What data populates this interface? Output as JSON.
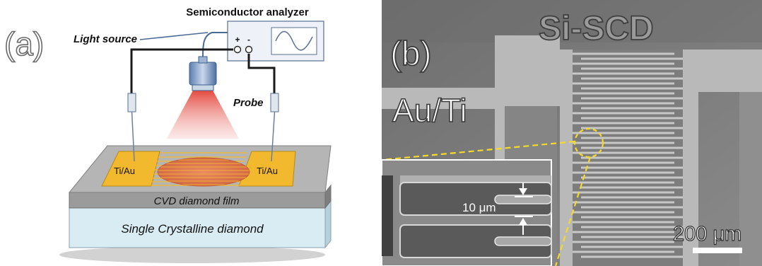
{
  "panel_a": {
    "panel_label": "(a)",
    "analyzer_label": "Semiconductor analyzer",
    "analyzer_terminals": {
      "plus": "+",
      "minus": "-"
    },
    "light_source_label": "Light source",
    "probe_label": "Probe",
    "electrode_left_label": "Ti/Au",
    "electrode_right_label": "Ti/Au",
    "film_label": "CVD diamond film",
    "substrate_label": "Single Crystalline diamond",
    "colors": {
      "electrode": "#F2B92E",
      "light_beam": "#E23A2E",
      "film": "#9B9B9B",
      "substrate": "#D9ECF4",
      "wire": "#1a1a1a"
    }
  },
  "panel_b": {
    "panel_label": "(b)",
    "metal_label": "Au/Ti",
    "material_label": "Si-SCD",
    "inset_dimension_label": "10 μm",
    "scale_bar_label": "200 μm",
    "colors": {
      "highlight": "#F5DA2A",
      "sem_background": "#7A7A7A",
      "sem_metal": "#B9B9B9"
    }
  }
}
